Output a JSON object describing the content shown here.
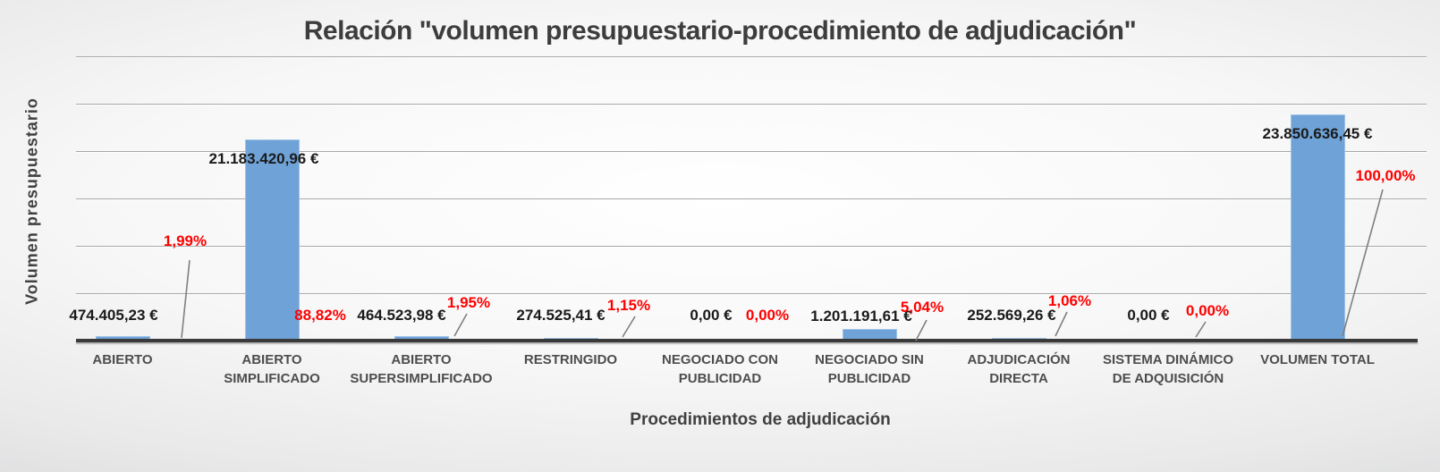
{
  "title": "Relación \"volumen presupuestario-procedimiento de adjudicación\"",
  "chart_data": {
    "type": "bar",
    "title": "Relación \"volumen presupuestario-procedimiento de adjudicación\"",
    "xlabel": "Procedimientos de adjudicación",
    "ylabel": "Volumen  presupuestario",
    "ylim": [
      0,
      30000000
    ],
    "gridline_step": 5000000,
    "grid": true,
    "legend": "none",
    "bar_color": "#6FA3D8",
    "value_label_color": "#1A1A1A",
    "pct_label_color": "#FF0000",
    "categories": [
      "ABIERTO",
      "ABIERTO SIMPLIFICADO",
      "ABIERTO SUPERSIMPLIFICADO",
      "RESTRINGIDO",
      "NEGOCIADO CON PUBLICIDAD",
      "NEGOCIADO SIN PUBLICIDAD",
      "ADJUDICACIÓN DIRECTA",
      "SISTEMA DINÁMICO DE ADQUISICIÓN",
      "VOLUMEN TOTAL"
    ],
    "bars": [
      {
        "category": "ABIERTO",
        "label_lines": [
          "ABIERTO"
        ],
        "value": 474405.23,
        "value_label": "474.405,23 €",
        "pct": 1.99,
        "pct_label": "1,99%"
      },
      {
        "category": "ABIERTO SIMPLIFICADO",
        "label_lines": [
          "ABIERTO",
          "SIMPLIFICADO"
        ],
        "value": 21183420.96,
        "value_label": "21.183.420,96 €",
        "pct": 88.82,
        "pct_label": "88,82%"
      },
      {
        "category": "ABIERTO SUPERSIMPLIFICADO",
        "label_lines": [
          "ABIERTO",
          "SUPERSIMPLIFICADO"
        ],
        "value": 464523.98,
        "value_label": "464.523,98 €",
        "pct": 1.95,
        "pct_label": "1,95%"
      },
      {
        "category": "RESTRINGIDO",
        "label_lines": [
          "RESTRINGIDO"
        ],
        "value": 274525.41,
        "value_label": "274.525,41 €",
        "pct": 1.15,
        "pct_label": "1,15%"
      },
      {
        "category": "NEGOCIADO CON PUBLICIDAD",
        "label_lines": [
          "NEGOCIADO CON",
          "PUBLICIDAD"
        ],
        "value": 0,
        "value_label": "0,00 €",
        "pct": 0,
        "pct_label": "0,00%"
      },
      {
        "category": "NEGOCIADO SIN PUBLICIDAD",
        "label_lines": [
          "NEGOCIADO SIN",
          "PUBLICIDAD"
        ],
        "value": 1201191.61,
        "value_label": "1.201.191,61 €",
        "pct": 5.04,
        "pct_label": "5,04%"
      },
      {
        "category": "ADJUDICACIÓN DIRECTA",
        "label_lines": [
          "ADJUDICACIÓN",
          "DIRECTA"
        ],
        "value": 252569.26,
        "value_label": "252.569,26 €",
        "pct": 1.06,
        "pct_label": "1,06%"
      },
      {
        "category": "SISTEMA DINÁMICO DE ADQUISICIÓN",
        "label_lines": [
          "SISTEMA DINÁMICO",
          "DE ADQUISICIÓN"
        ],
        "value": 0,
        "value_label": "0,00 €",
        "pct": 0,
        "pct_label": "0,00%"
      },
      {
        "category": "VOLUMEN TOTAL",
        "label_lines": [
          "VOLUMEN TOTAL"
        ],
        "value": 23850636.45,
        "value_label": "23.850.636,45 €",
        "pct": 100,
        "pct_label": "100,00%"
      }
    ]
  }
}
